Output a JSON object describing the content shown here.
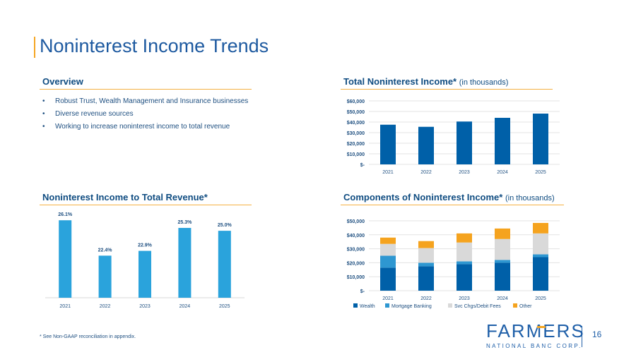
{
  "slide": {
    "title": "Noninterest Income Trends",
    "page_number": "16",
    "footnote": "* See Non-GAAP reconciliation in appendix."
  },
  "overview": {
    "heading": "Overview",
    "bullets": [
      "Robust Trust, Wealth Management and Insurance businesses",
      "Diverse revenue sources",
      "Working to increase noninterest income to total revenue"
    ]
  },
  "total_chart_head": {
    "heading": "Total Noninterest Income*",
    "sub": "(in thousands)"
  },
  "ratio_chart_head": {
    "heading": "Noninterest Income to Total Revenue*"
  },
  "components_chart_head": {
    "heading": "Components of Noninterest Income*",
    "sub": "(in thousands)"
  },
  "logo": {
    "word": "FARMERS",
    "tagline": "NATIONAL BANC CORP."
  },
  "colors": {
    "dark_blue": "#0060a8",
    "light_blue": "#2aa3dc",
    "mid_blue": "#2e97d1",
    "gray": "#d9d9d9",
    "orange": "#f5a31e"
  },
  "chart_data": [
    {
      "type": "bar",
      "title": "Total Noninterest Income* (in thousands)",
      "categories": [
        "2021",
        "2022",
        "2023",
        "2024",
        "2025"
      ],
      "values": [
        37500,
        35500,
        40500,
        44000,
        48000
      ],
      "ylim": [
        0,
        60000
      ],
      "yticks": [
        0,
        10000,
        20000,
        30000,
        40000,
        50000,
        60000
      ],
      "ytick_labels": [
        "$-",
        "$10,000",
        "$20,000",
        "$30,000",
        "$40,000",
        "$50,000",
        "$60,000"
      ],
      "grid": true
    },
    {
      "type": "bar",
      "title": "Noninterest Income to Total Revenue*",
      "categories": [
        "2021",
        "2022",
        "2023",
        "2024",
        "2025"
      ],
      "values": [
        26.1,
        22.4,
        22.9,
        25.3,
        25.0
      ],
      "data_labels": [
        "26.1%",
        "22.4%",
        "22.9%",
        "25.3%",
        "25.0%"
      ],
      "ylim": [
        18,
        27
      ]
    },
    {
      "type": "bar",
      "stacked": true,
      "title": "Components of Noninterest Income* (in thousands)",
      "categories": [
        "2021",
        "2022",
        "2023",
        "2024",
        "2025"
      ],
      "series": [
        {
          "name": "Wealth",
          "values": [
            16500,
            17500,
            19000,
            20000,
            24000
          ]
        },
        {
          "name": "Mortgage Banking",
          "values": [
            8500,
            2500,
            2000,
            2000,
            2000
          ]
        },
        {
          "name": "Svc Chgs/Debit Fees",
          "values": [
            8500,
            10500,
            13500,
            15000,
            15000
          ]
        },
        {
          "name": "Other",
          "values": [
            4500,
            5000,
            6500,
            7500,
            7500
          ]
        }
      ],
      "ylim": [
        0,
        50000
      ],
      "yticks": [
        0,
        10000,
        20000,
        30000,
        40000,
        50000
      ],
      "ytick_labels": [
        "$-",
        "$10,000",
        "$20,000",
        "$30,000",
        "$40,000",
        "$50,000"
      ],
      "legend": "bottom-left",
      "grid": true
    }
  ]
}
